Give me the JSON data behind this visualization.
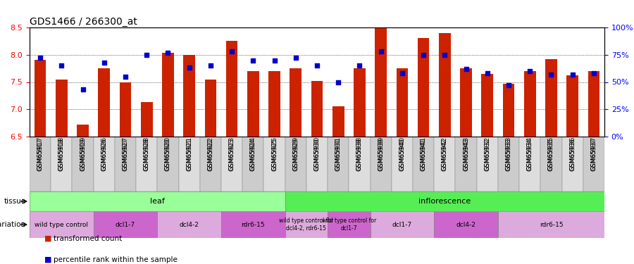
{
  "title": "GDS1466 / 266300_at",
  "samples": [
    "GSM65917",
    "GSM65918",
    "GSM65919",
    "GSM65926",
    "GSM65927",
    "GSM65928",
    "GSM65920",
    "GSM65921",
    "GSM65922",
    "GSM65923",
    "GSM65924",
    "GSM65925",
    "GSM65929",
    "GSM65930",
    "GSM65931",
    "GSM65938",
    "GSM65939",
    "GSM65940",
    "GSM65941",
    "GSM65942",
    "GSM65943",
    "GSM65932",
    "GSM65933",
    "GSM65934",
    "GSM65935",
    "GSM65936",
    "GSM65937"
  ],
  "transformed_count": [
    7.9,
    7.55,
    6.72,
    7.75,
    7.5,
    7.13,
    8.04,
    8.0,
    7.55,
    8.25,
    7.7,
    7.7,
    7.75,
    7.52,
    7.05,
    7.75,
    8.5,
    7.75,
    8.3,
    8.4,
    7.75,
    7.65,
    7.47,
    7.7,
    7.92,
    7.62,
    7.7
  ],
  "percentile_rank": [
    72,
    65,
    43,
    68,
    55,
    75,
    77,
    63,
    65,
    78,
    70,
    70,
    72,
    65,
    50,
    65,
    78,
    58,
    75,
    75,
    62,
    58,
    47,
    60,
    57,
    57,
    58
  ],
  "ylim": [
    6.5,
    8.5
  ],
  "y_ticks": [
    6.5,
    7.0,
    7.5,
    8.0,
    8.5
  ],
  "right_yticks": [
    0,
    25,
    50,
    75,
    100
  ],
  "bar_color": "#cc2200",
  "dot_color": "#0000cc",
  "tissue_groups": [
    {
      "label": "leaf",
      "start": 0,
      "end": 11,
      "color": "#99ff99"
    },
    {
      "label": "inflorescence",
      "start": 12,
      "end": 26,
      "color": "#55ee55"
    }
  ],
  "genotype_groups": [
    {
      "label": "wild type control",
      "start": 0,
      "end": 2,
      "color": "#ddaadd"
    },
    {
      "label": "dcl1-7",
      "start": 3,
      "end": 5,
      "color": "#cc66cc"
    },
    {
      "label": "dcl4-2",
      "start": 6,
      "end": 8,
      "color": "#ddaadd"
    },
    {
      "label": "rdr6-15",
      "start": 9,
      "end": 11,
      "color": "#cc66cc"
    },
    {
      "label": "wild type control for\ndcl4-2, rdr6-15",
      "start": 12,
      "end": 13,
      "color": "#ddaadd"
    },
    {
      "label": "wild type control for\ndcl1-7",
      "start": 14,
      "end": 15,
      "color": "#cc66cc"
    },
    {
      "label": "dcl1-7",
      "start": 16,
      "end": 18,
      "color": "#ddaadd"
    },
    {
      "label": "dcl4-2",
      "start": 19,
      "end": 21,
      "color": "#cc66cc"
    },
    {
      "label": "rdr6-15",
      "start": 22,
      "end": 26,
      "color": "#ddaadd"
    }
  ],
  "legend_items": [
    {
      "label": "transformed count",
      "color": "#cc2200"
    },
    {
      "label": "percentile rank within the sample",
      "color": "#0000cc"
    }
  ]
}
